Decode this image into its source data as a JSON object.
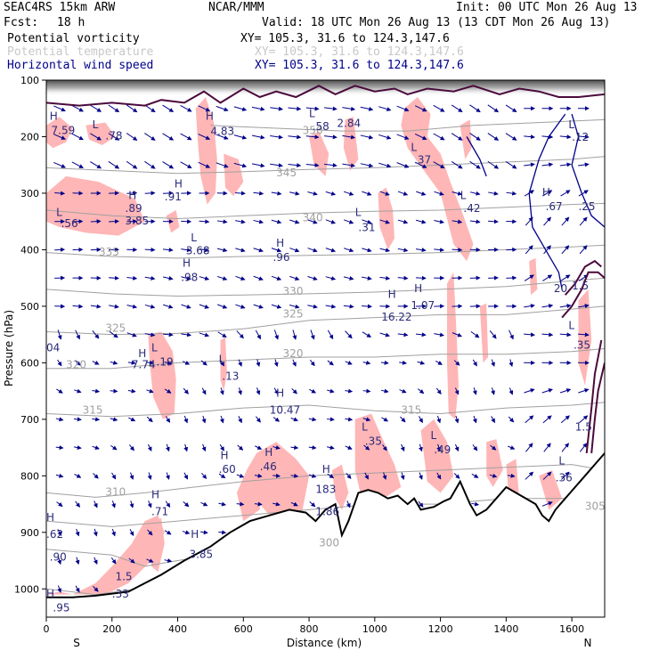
{
  "header": {
    "model": "SEAC4RS 15km ARW",
    "center": "NCAR/MMM",
    "init": "Init: 00 UTC Mon 26 Aug 13",
    "fcst_label": "Fcst:",
    "fcst_value": "18 h",
    "valid": "Valid: 18 UTC Mon 26 Aug 13 (13 CDT Mon 26 Aug 13)",
    "fields": [
      {
        "name": "Potential vorticity",
        "xy": "XY= 105.3, 31.6 to 124.3,147.6",
        "color": "#000000"
      },
      {
        "name": "Potential temperature",
        "xy": "XY= 105.3, 31.6 to 124.3,147.6",
        "color": "#c8c8c8"
      },
      {
        "name": "Horizontal wind speed",
        "xy": "XY= 105.3, 31.6 to 124.3,147.6",
        "color": "#00008b"
      }
    ]
  },
  "colors": {
    "pv_fill": "#ffb6b6",
    "theta_contour": "#a0a0a0",
    "wind_vector": "#00008b",
    "pv_contour": "#4b0a3c",
    "terrain": "#000000",
    "label": "#2a2a7a"
  },
  "chart_data": {
    "type": "cross-section",
    "xlabel": "Distance (km)",
    "ylabel": "Pressure (hPa)",
    "xlim": [
      0,
      1700
    ],
    "ylim": [
      1050,
      100
    ],
    "x_ticks": [
      0,
      200,
      400,
      600,
      800,
      1000,
      1200,
      1400,
      1600
    ],
    "y_ticks": [
      100,
      200,
      300,
      400,
      500,
      600,
      700,
      800,
      900,
      1000
    ],
    "x_end_labels": {
      "left": "S",
      "right": "N"
    },
    "theta_contours": [
      {
        "value": "350",
        "x": 780,
        "p": 195
      },
      {
        "value": "345",
        "x": 700,
        "p": 270
      },
      {
        "value": "340",
        "x": 780,
        "p": 350
      },
      {
        "value": "335",
        "x": 160,
        "p": 410
      },
      {
        "value": "330",
        "x": 720,
        "p": 480
      },
      {
        "value": "325",
        "x": 180,
        "p": 545
      },
      {
        "value": "325",
        "x": 720,
        "p": 520
      },
      {
        "value": "320",
        "x": 60,
        "p": 610
      },
      {
        "value": "320",
        "x": 720,
        "p": 590
      },
      {
        "value": "315",
        "x": 110,
        "p": 690
      },
      {
        "value": "315",
        "x": 1080,
        "p": 690
      },
      {
        "value": "310",
        "x": 180,
        "p": 835
      },
      {
        "value": "305",
        "x": 1640,
        "p": 860
      },
      {
        "value": "300",
        "x": 830,
        "p": 925
      }
    ],
    "extrema_labels": [
      {
        "type": "H",
        "value": "",
        "x": 10,
        "p": 170
      },
      {
        "type": "",
        "value": "7.59",
        "x": 15,
        "p": 195
      },
      {
        "type": "L",
        "value": "",
        "x": 140,
        "p": 185
      },
      {
        "type": "",
        "value": ".78",
        "x": 180,
        "p": 205
      },
      {
        "type": "H",
        "value": "",
        "x": 485,
        "p": 170
      },
      {
        "type": "",
        "value": "4.83",
        "x": 500,
        "p": 197
      },
      {
        "type": "L",
        "value": "",
        "x": 800,
        "p": 165
      },
      {
        "type": "",
        "value": ".58",
        "x": 810,
        "p": 188
      },
      {
        "type": "",
        "value": "2.84",
        "x": 885,
        "p": 183
      },
      {
        "type": "L",
        "value": "",
        "x": 1110,
        "p": 225
      },
      {
        "type": "",
        "value": ".37",
        "x": 1120,
        "p": 247
      },
      {
        "type": "L",
        "value": "",
        "x": 1590,
        "p": 185
      },
      {
        "type": "",
        "value": ".12",
        "x": 1600,
        "p": 207
      },
      {
        "type": "H",
        "value": "",
        "x": 390,
        "p": 290
      },
      {
        "type": "",
        "value": ".91",
        "x": 360,
        "p": 313
      },
      {
        "type": "H",
        "value": "",
        "x": 250,
        "p": 310
      },
      {
        "type": "",
        "value": ".89",
        "x": 240,
        "p": 333
      },
      {
        "type": "L",
        "value": "",
        "x": 30,
        "p": 340
      },
      {
        "type": "",
        "value": ".56",
        "x": 45,
        "p": 360
      },
      {
        "type": "",
        "value": "3.85",
        "x": 240,
        "p": 355
      },
      {
        "type": "L",
        "value": "",
        "x": 1260,
        "p": 310
      },
      {
        "type": "",
        "value": ".42",
        "x": 1270,
        "p": 333
      },
      {
        "type": "H",
        "value": "",
        "x": 1510,
        "p": 305
      },
      {
        "type": "",
        "value": ".67",
        "x": 1520,
        "p": 330
      },
      {
        "type": "",
        "value": ".25",
        "x": 1620,
        "p": 330
      },
      {
        "type": "L",
        "value": "",
        "x": 940,
        "p": 340
      },
      {
        "type": "",
        "value": ".31",
        "x": 950,
        "p": 367
      },
      {
        "type": "L",
        "value": "",
        "x": 440,
        "p": 385
      },
      {
        "type": "",
        "value": "3.68",
        "x": 425,
        "p": 408
      },
      {
        "type": "H",
        "value": "",
        "x": 700,
        "p": 395
      },
      {
        "type": "",
        "value": ".96",
        "x": 690,
        "p": 420
      },
      {
        "type": "H",
        "value": "",
        "x": 415,
        "p": 430
      },
      {
        "type": "",
        "value": ".98",
        "x": 410,
        "p": 455
      },
      {
        "type": "",
        "value": "20",
        "x": 1545,
        "p": 475
      },
      {
        "type": "",
        "value": "1.5",
        "x": 1600,
        "p": 470
      },
      {
        "type": "H",
        "value": "",
        "x": 1040,
        "p": 485
      },
      {
        "type": "",
        "value": "16.22",
        "x": 1020,
        "p": 525
      },
      {
        "type": "H",
        "value": "",
        "x": 1120,
        "p": 475
      },
      {
        "type": "",
        "value": "1.07",
        "x": 1110,
        "p": 505
      },
      {
        "type": "L",
        "value": "",
        "x": 1590,
        "p": 540
      },
      {
        "type": "",
        "value": ".35",
        "x": 1605,
        "p": 575
      },
      {
        "type": "",
        "value": "04",
        "x": 0,
        "p": 580
      },
      {
        "type": "H",
        "value": "",
        "x": 280,
        "p": 590
      },
      {
        "type": "L",
        "value": "",
        "x": 320,
        "p": 580
      },
      {
        "type": "",
        "value": "7.74",
        "x": 260,
        "p": 610
      },
      {
        "type": "",
        "value": ".19",
        "x": 335,
        "p": 605
      },
      {
        "type": "L",
        "value": "",
        "x": 525,
        "p": 600
      },
      {
        "type": "",
        "value": ".13",
        "x": 535,
        "p": 630
      },
      {
        "type": "H",
        "value": "",
        "x": 700,
        "p": 660
      },
      {
        "type": "",
        "value": "10.47",
        "x": 680,
        "p": 690
      },
      {
        "type": "",
        "value": "1.5",
        "x": 1610,
        "p": 720
      },
      {
        "type": "L",
        "value": "",
        "x": 960,
        "p": 720
      },
      {
        "type": "",
        "value": ".35",
        "x": 970,
        "p": 745
      },
      {
        "type": "L",
        "value": "",
        "x": 1170,
        "p": 735
      },
      {
        "type": "",
        "value": ".49",
        "x": 1180,
        "p": 760
      },
      {
        "type": "H",
        "value": "",
        "x": 530,
        "p": 770
      },
      {
        "type": "",
        "value": ".60",
        "x": 525,
        "p": 795
      },
      {
        "type": "H",
        "value": "",
        "x": 665,
        "p": 765
      },
      {
        "type": "",
        "value": ".46",
        "x": 650,
        "p": 790
      },
      {
        "type": "H",
        "value": "",
        "x": 840,
        "p": 795
      },
      {
        "type": "",
        "value": "183",
        "x": 820,
        "p": 830
      },
      {
        "type": "",
        "value": "1.86",
        "x": 820,
        "p": 870
      },
      {
        "type": "L",
        "value": "",
        "x": 1560,
        "p": 780
      },
      {
        "type": "",
        "value": ".36",
        "x": 1550,
        "p": 810
      },
      {
        "type": "H",
        "value": "",
        "x": 320,
        "p": 840
      },
      {
        "type": "",
        "value": ".71",
        "x": 320,
        "p": 870
      },
      {
        "type": "H",
        "value": "",
        "x": 0,
        "p": 880
      },
      {
        "type": "",
        "value": ".62",
        "x": 0,
        "p": 910
      },
      {
        "type": "",
        "value": ".90",
        "x": 10,
        "p": 950
      },
      {
        "type": "H",
        "value": "",
        "x": 440,
        "p": 910
      },
      {
        "type": "",
        "value": "3.85",
        "x": 435,
        "p": 945
      },
      {
        "type": "",
        "value": "1.5",
        "x": 210,
        "p": 985
      },
      {
        "type": "",
        "value": ".33",
        "x": 200,
        "p": 1015
      },
      {
        "type": "H",
        "value": "",
        "x": 0,
        "p": 1015
      },
      {
        "type": "",
        "value": ".95",
        "x": 20,
        "p": 1040
      }
    ]
  }
}
